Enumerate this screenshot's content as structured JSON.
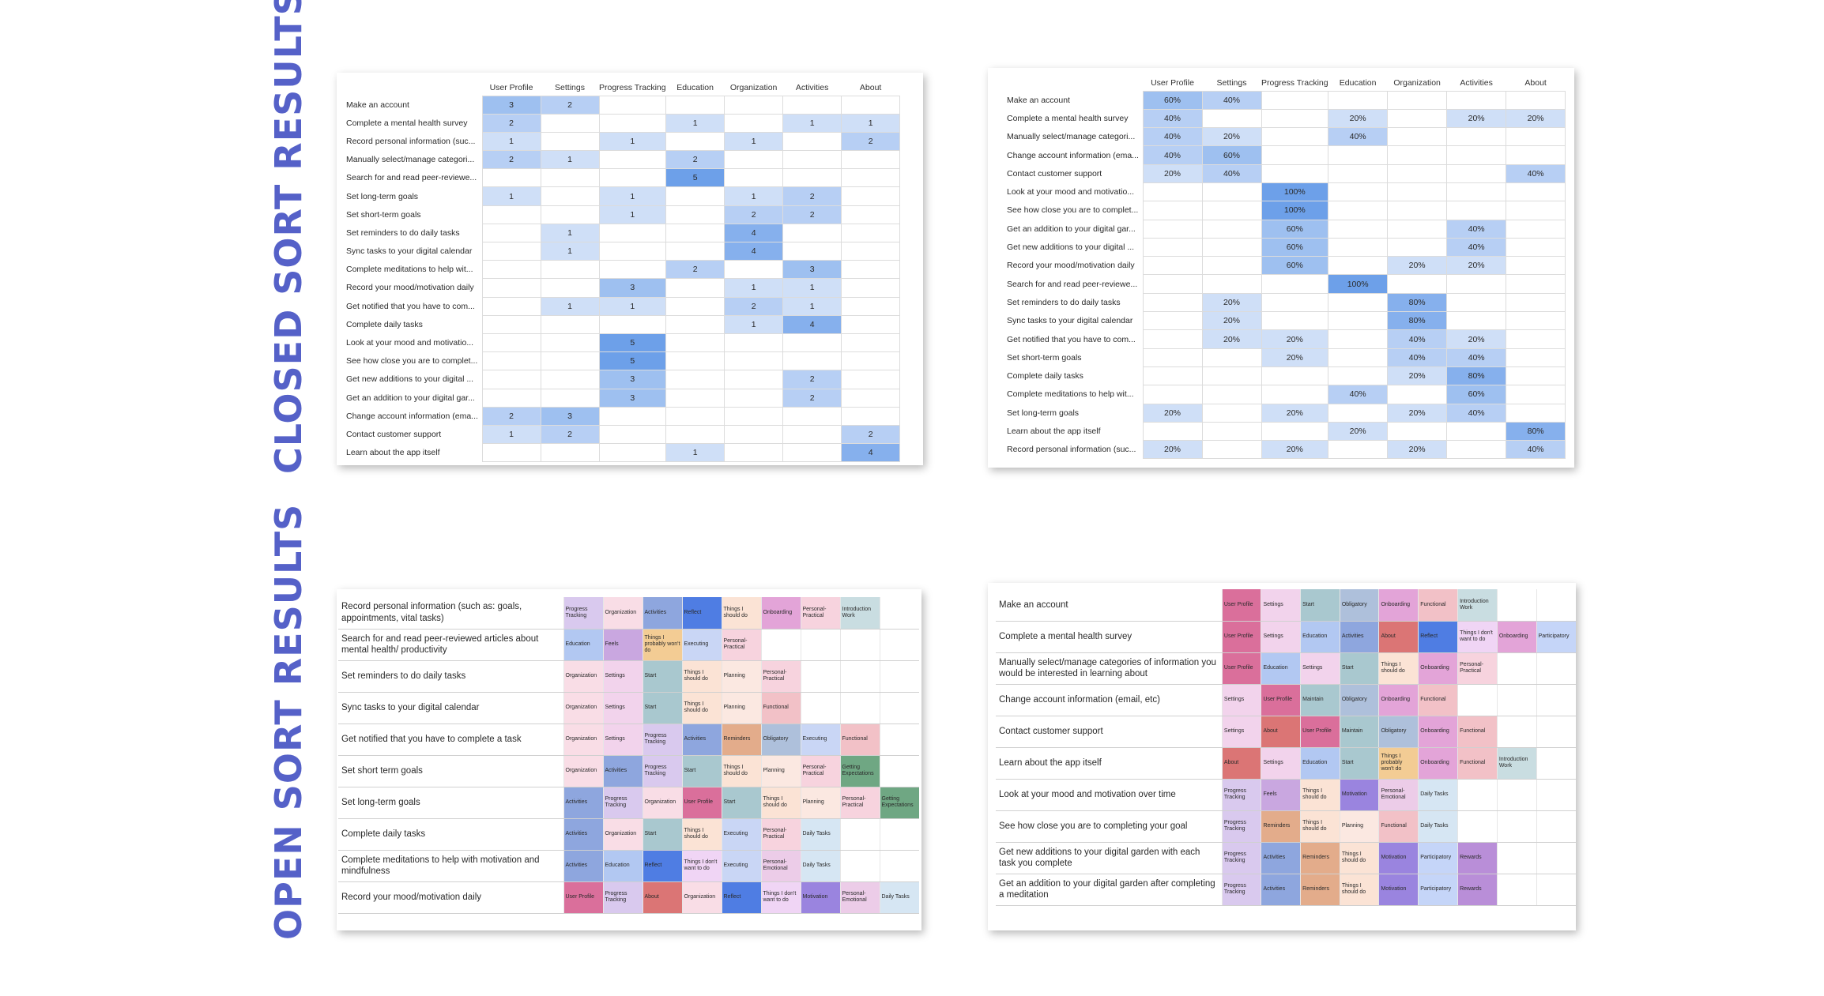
{
  "closed_title": "CLOSED SORT RESULTS",
  "open_title": "OPEN SORT RESULTS",
  "closed_left": {
    "columns": [
      "User Profile",
      "Settings",
      "Progress Tracking",
      "Education",
      "Organization",
      "Activities",
      "About"
    ],
    "rows": [
      {
        "label": "Make an account",
        "cells": [
          "3",
          "2",
          "",
          "",
          "",
          "",
          ""
        ]
      },
      {
        "label": "Complete a mental health survey",
        "cells": [
          "2",
          "",
          "",
          "1",
          "",
          "1",
          "1"
        ]
      },
      {
        "label": "Record personal information (suc...",
        "cells": [
          "1",
          "",
          "1",
          "",
          "1",
          "",
          "2"
        ]
      },
      {
        "label": "Manually select/manage categori...",
        "cells": [
          "2",
          "1",
          "",
          "2",
          "",
          "",
          ""
        ]
      },
      {
        "label": "Search for and read peer-reviewe...",
        "cells": [
          "",
          "",
          "",
          "5",
          "",
          "",
          ""
        ]
      },
      {
        "label": "Set long-term goals",
        "cells": [
          "1",
          "",
          "1",
          "",
          "1",
          "2",
          ""
        ]
      },
      {
        "label": "Set short-term goals",
        "cells": [
          "",
          "",
          "1",
          "",
          "2",
          "2",
          ""
        ]
      },
      {
        "label": "Set reminders to do daily tasks",
        "cells": [
          "",
          "1",
          "",
          "",
          "4",
          "",
          ""
        ]
      },
      {
        "label": "Sync tasks to your digital calendar",
        "cells": [
          "",
          "1",
          "",
          "",
          "4",
          "",
          ""
        ]
      },
      {
        "label": "Complete meditations to help wit...",
        "cells": [
          "",
          "",
          "",
          "2",
          "",
          "3",
          ""
        ]
      },
      {
        "label": "Record your mood/motivation daily",
        "cells": [
          "",
          "",
          "3",
          "",
          "1",
          "1",
          ""
        ]
      },
      {
        "label": "Get notified that you have to com...",
        "cells": [
          "",
          "1",
          "1",
          "",
          "2",
          "1",
          ""
        ]
      },
      {
        "label": "Complete daily tasks",
        "cells": [
          "",
          "",
          "",
          "",
          "1",
          "4",
          ""
        ]
      },
      {
        "label": "Look at your mood and motivatio...",
        "cells": [
          "",
          "",
          "5",
          "",
          "",
          "",
          ""
        ]
      },
      {
        "label": "See how close you are to complet...",
        "cells": [
          "",
          "",
          "5",
          "",
          "",
          "",
          ""
        ]
      },
      {
        "label": "Get new additions to your digital ...",
        "cells": [
          "",
          "",
          "3",
          "",
          "",
          "2",
          ""
        ]
      },
      {
        "label": "Get an addition to your digital gar...",
        "cells": [
          "",
          "",
          "3",
          "",
          "",
          "2",
          ""
        ]
      },
      {
        "label": "Change account information (ema...",
        "cells": [
          "2",
          "3",
          "",
          "",
          "",
          "",
          ""
        ]
      },
      {
        "label": "Contact customer support",
        "cells": [
          "1",
          "2",
          "",
          "",
          "",
          "",
          "2"
        ]
      },
      {
        "label": "Learn about the app itself",
        "cells": [
          "",
          "",
          "",
          "1",
          "",
          "",
          "4"
        ]
      }
    ]
  },
  "closed_right": {
    "columns": [
      "User Profile",
      "Settings",
      "Progress Tracking",
      "Education",
      "Organization",
      "Activities",
      "About"
    ],
    "rows": [
      {
        "label": "Make an account",
        "cells": [
          "60%",
          "40%",
          "",
          "",
          "",
          "",
          ""
        ]
      },
      {
        "label": "Complete a mental health survey",
        "cells": [
          "40%",
          "",
          "",
          "20%",
          "",
          "20%",
          "20%"
        ]
      },
      {
        "label": "Manually select/manage categori...",
        "cells": [
          "40%",
          "20%",
          "",
          "40%",
          "",
          "",
          ""
        ]
      },
      {
        "label": "Change account information (ema...",
        "cells": [
          "40%",
          "60%",
          "",
          "",
          "",
          "",
          ""
        ]
      },
      {
        "label": "Contact customer support",
        "cells": [
          "20%",
          "40%",
          "",
          "",
          "",
          "",
          "40%"
        ]
      },
      {
        "label": "Look at your mood and motivatio...",
        "cells": [
          "",
          "",
          "100%",
          "",
          "",
          "",
          ""
        ]
      },
      {
        "label": "See how close you are to complet...",
        "cells": [
          "",
          "",
          "100%",
          "",
          "",
          "",
          ""
        ]
      },
      {
        "label": "Get an addition to your digital gar...",
        "cells": [
          "",
          "",
          "60%",
          "",
          "",
          "40%",
          ""
        ]
      },
      {
        "label": "Get new additions to your digital ...",
        "cells": [
          "",
          "",
          "60%",
          "",
          "",
          "40%",
          ""
        ]
      },
      {
        "label": "Record your mood/motivation daily",
        "cells": [
          "",
          "",
          "60%",
          "",
          "20%",
          "20%",
          ""
        ]
      },
      {
        "label": "Search for and read peer-reviewe...",
        "cells": [
          "",
          "",
          "",
          "100%",
          "",
          "",
          ""
        ]
      },
      {
        "label": "Set reminders to do daily tasks",
        "cells": [
          "",
          "20%",
          "",
          "",
          "80%",
          "",
          ""
        ]
      },
      {
        "label": "Sync tasks to your digital calendar",
        "cells": [
          "",
          "20%",
          "",
          "",
          "80%",
          "",
          ""
        ]
      },
      {
        "label": "Get notified that you have to com...",
        "cells": [
          "",
          "20%",
          "20%",
          "",
          "40%",
          "20%",
          ""
        ]
      },
      {
        "label": "Set short-term goals",
        "cells": [
          "",
          "",
          "20%",
          "",
          "40%",
          "40%",
          ""
        ]
      },
      {
        "label": "Complete daily tasks",
        "cells": [
          "",
          "",
          "",
          "",
          "20%",
          "80%",
          ""
        ]
      },
      {
        "label": "Complete meditations to help wit...",
        "cells": [
          "",
          "",
          "",
          "40%",
          "",
          "60%",
          ""
        ]
      },
      {
        "label": "Set long-term goals",
        "cells": [
          "20%",
          "",
          "20%",
          "",
          "20%",
          "40%",
          ""
        ]
      },
      {
        "label": "Learn about the app itself",
        "cells": [
          "",
          "",
          "",
          "20%",
          "",
          "",
          "80%"
        ]
      },
      {
        "label": "Record personal information (suc...",
        "cells": [
          "20%",
          "",
          "20%",
          "",
          "20%",
          "",
          "40%"
        ]
      }
    ]
  },
  "tag_colors": {
    "Progress Tracking": "#d9c9ee",
    "Organization": "#f9dde6",
    "Activities": "#8ea6de",
    "Reflect": "#4f7de3",
    "Things I should do": "#fbe3d5",
    "Onboarding": "#e3a4d8",
    "Personal-Practical": "#f7d3de",
    "Introduction Work": "#c9dde1",
    "Education": "#b2c8f2",
    "Feels": "#c9a7e0",
    "Things I probably won't do": "#f3cc94",
    "Executing": "#c9d6f5",
    "Settings": "#f2d3ec",
    "Start": "#a9c8cf",
    "Planning": "#fbe8e1",
    "Functional": "#f2c1c7",
    "Reminders": "#e3ac8b",
    "Obligatory": "#aec0db",
    "Getting Expectations": "#6fa783",
    "User Profile": "#da6f9b",
    "About": "#db7575",
    "Things I don't want to do": "#f0d5f5",
    "Motivation": "#9a84df",
    "Personal-Emotional": "#eccce8",
    "Daily Tasks": "#d6e6f3",
    "Maintain": "#a9c8cf",
    "Participatory": "#c5d5f8",
    "Rewards": "#b98ed8"
  },
  "open_left": {
    "rows": [
      {
        "label": "Record personal information (such as: goals, appointments, vital tasks)",
        "tags": [
          "Progress Tracking",
          "Organization",
          "Activities",
          "Reflect",
          "Things I should do",
          "Onboarding",
          "Personal-Practical",
          "Introduction Work"
        ]
      },
      {
        "label": "Search for and read peer-reviewed articles about mental health/ productivity",
        "tags": [
          "Education",
          "Feels",
          "Things I probably won't do",
          "Executing",
          "Personal-Practical"
        ]
      },
      {
        "label": "Set reminders to do daily tasks",
        "tags": [
          "Organization",
          "Settings",
          "Start",
          "Things I should do",
          "Planning",
          "Personal-Practical"
        ]
      },
      {
        "label": "Sync tasks to your digital calendar",
        "tags": [
          "Organization",
          "Settings",
          "Start",
          "Things I should do",
          "Planning",
          "Functional"
        ]
      },
      {
        "label": "Get notified that you have to complete a task",
        "tags": [
          "Organization",
          "Settings",
          "Progress Tracking",
          "Activities",
          "Reminders",
          "Obligatory",
          "Executing",
          "Functional"
        ]
      },
      {
        "label": "Set short term goals",
        "tags": [
          "Organization",
          "Activities",
          "Progress Tracking",
          "Start",
          "Things I should do",
          "Planning",
          "Personal-Practical",
          "Getting Expectations"
        ]
      },
      {
        "label": "Set long-term goals",
        "tags": [
          "Activities",
          "Progress Tracking",
          "Organization",
          "User Profile",
          "Start",
          "Things I should do",
          "Planning",
          "Personal-Practical",
          "Getting Expectations"
        ]
      },
      {
        "label": "Complete daily tasks",
        "tags": [
          "Activities",
          "Organization",
          "Start",
          "Things I should do",
          "Executing",
          "Personal-Practical",
          "Daily Tasks"
        ]
      },
      {
        "label": "Complete meditations to help with motivation and mindfulness",
        "tags": [
          "Activities",
          "Education",
          "Reflect",
          "Things I don't want to do",
          "Executing",
          "Personal-Emotional",
          "Daily Tasks"
        ]
      },
      {
        "label": "Record your mood/motivation daily",
        "tags": [
          "User Profile",
          "Progress Tracking",
          "About",
          "Organization",
          "Reflect",
          "Things I don't want to do",
          "Motivation",
          "Personal-Emotional",
          "Daily Tasks"
        ]
      }
    ]
  },
  "open_right": {
    "rows": [
      {
        "label": "Make an account",
        "tags": [
          "User Profile",
          "Settings",
          "Start",
          "Obligatory",
          "Onboarding",
          "Functional",
          "Introduction Work"
        ]
      },
      {
        "label": "Complete a mental health survey",
        "tags": [
          "User Profile",
          "Settings",
          "Education",
          "Activities",
          "About",
          "Reflect",
          "Things I don't want to do",
          "Onboarding",
          "Participatory"
        ]
      },
      {
        "label": "Manually select/manage categories of information you would be interested in learning about",
        "tags": [
          "User Profile",
          "Education",
          "Settings",
          "Start",
          "Things I should do",
          "Onboarding",
          "Personal-Practical"
        ]
      },
      {
        "label": "Change account information (email, etc)",
        "tags": [
          "Settings",
          "User Profile",
          "Maintain",
          "Obligatory",
          "Onboarding",
          "Functional"
        ]
      },
      {
        "label": "Contact customer support",
        "tags": [
          "Settings",
          "About",
          "User Profile",
          "Maintain",
          "Obligatory",
          "Onboarding",
          "Functional"
        ]
      },
      {
        "label": "Learn about the app itself",
        "tags": [
          "About",
          "Settings",
          "Education",
          "Start",
          "Things I probably won't do",
          "Onboarding",
          "Functional",
          "Introduction Work"
        ]
      },
      {
        "label": "Look at your mood and motivation over time",
        "tags": [
          "Progress Tracking",
          "Feels",
          "Things I should do",
          "Motivation",
          "Personal-Emotional",
          "Daily Tasks"
        ]
      },
      {
        "label": "See how close you are to completing your goal",
        "tags": [
          "Progress Tracking",
          "Reminders",
          "Things I should do",
          "Planning",
          "Functional",
          "Daily Tasks"
        ]
      },
      {
        "label": "Get new additions to your digital garden with each task you complete",
        "tags": [
          "Progress Tracking",
          "Activities",
          "Reminders",
          "Things I should do",
          "Motivation",
          "Participatory",
          "Rewards"
        ]
      },
      {
        "label": "Get an addition to your digital garden after completing a meditation",
        "tags": [
          "Progress Tracking",
          "Activities",
          "Reminders",
          "Things I should do",
          "Motivation",
          "Participatory",
          "Rewards"
        ]
      }
    ]
  }
}
